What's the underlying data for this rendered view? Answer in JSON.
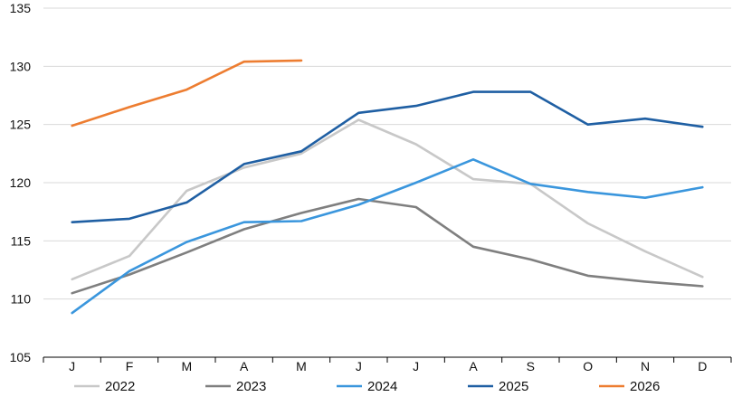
{
  "chart_data": {
    "type": "line",
    "title": "",
    "xlabel": "",
    "ylabel": "",
    "categories": [
      "J",
      "F",
      "M",
      "A",
      "M",
      "J",
      "J",
      "A",
      "S",
      "O",
      "N",
      "D"
    ],
    "ylim": [
      105,
      135
    ],
    "yticks": [
      105,
      110,
      115,
      120,
      125,
      130,
      135
    ],
    "grid": "horizontal",
    "legend_position": "bottom",
    "series": [
      {
        "name": "2022",
        "color": "#c8c8c8",
        "values": [
          111.7,
          113.7,
          119.3,
          121.3,
          122.5,
          125.4,
          123.3,
          120.3,
          119.9,
          116.5,
          114.1,
          111.9
        ]
      },
      {
        "name": "2023",
        "color": "#7f7f7f",
        "values": [
          110.5,
          112.1,
          114.0,
          116.0,
          117.4,
          118.6,
          117.9,
          114.5,
          113.4,
          112.0,
          111.5,
          111.1
        ]
      },
      {
        "name": "2024",
        "color": "#3a96dd",
        "values": [
          108.8,
          112.4,
          114.9,
          116.6,
          116.7,
          118.1,
          120.0,
          122.0,
          119.9,
          119.2,
          118.7,
          119.6
        ]
      },
      {
        "name": "2025",
        "color": "#1f5fa3",
        "values": [
          116.6,
          116.9,
          118.3,
          121.6,
          122.7,
          126.0,
          126.6,
          127.8,
          127.8,
          125.0,
          125.5,
          124.8
        ]
      },
      {
        "name": "2026",
        "color": "#ed7d31",
        "values": [
          124.9,
          126.5,
          128.0,
          130.4,
          130.5,
          null,
          null,
          null,
          null,
          null,
          null,
          null
        ]
      }
    ]
  }
}
